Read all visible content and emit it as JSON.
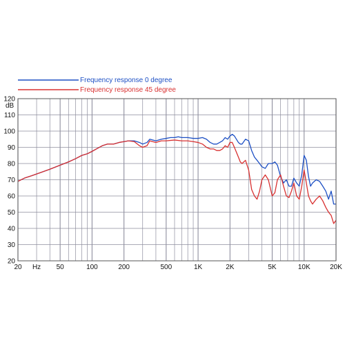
{
  "colors": {
    "series0": "#1c4fc4",
    "series45": "#d83030",
    "grid": "#8e8e9e",
    "frame": "#555555",
    "text": "#111111"
  },
  "chart_data": {
    "type": "line",
    "x_scale": "log",
    "xlim": [
      20,
      20000
    ],
    "ylim": [
      20,
      120
    ],
    "ylabel": "dB",
    "x_tick_labels": [
      {
        "value": 20,
        "label": "20"
      },
      {
        "value": 30,
        "label": "Hz"
      },
      {
        "value": 50,
        "label": "50"
      },
      {
        "value": 100,
        "label": "100"
      },
      {
        "value": 200,
        "label": "200"
      },
      {
        "value": 500,
        "label": "500"
      },
      {
        "value": 1000,
        "label": "1K"
      },
      {
        "value": 2000,
        "label": "2K"
      },
      {
        "value": 5000,
        "label": "5K"
      },
      {
        "value": 10000,
        "label": "10K"
      },
      {
        "value": 20000,
        "label": "20K"
      }
    ],
    "y_tick_labels": [
      "20",
      "30",
      "40",
      "50",
      "60",
      "70",
      "80",
      "90",
      "100",
      "110",
      "120"
    ],
    "grid": true,
    "legend_position": "top-left",
    "series": [
      {
        "name": "Frequency response 0 degree",
        "color": "#1c4fc4",
        "points": [
          [
            20,
            69
          ],
          [
            23,
            71
          ],
          [
            27,
            72.5
          ],
          [
            33,
            74.5
          ],
          [
            40,
            76.5
          ],
          [
            50,
            79
          ],
          [
            60,
            81
          ],
          [
            70,
            83
          ],
          [
            80,
            85
          ],
          [
            90,
            86
          ],
          [
            100,
            87.5
          ],
          [
            110,
            89
          ],
          [
            125,
            91
          ],
          [
            140,
            92
          ],
          [
            160,
            92
          ],
          [
            180,
            93
          ],
          [
            200,
            93.5
          ],
          [
            220,
            94
          ],
          [
            250,
            94
          ],
          [
            280,
            93
          ],
          [
            300,
            92
          ],
          [
            330,
            93
          ],
          [
            350,
            95
          ],
          [
            400,
            94
          ],
          [
            450,
            95
          ],
          [
            500,
            95.5
          ],
          [
            550,
            96
          ],
          [
            600,
            96
          ],
          [
            650,
            96.5
          ],
          [
            700,
            96
          ],
          [
            800,
            96
          ],
          [
            900,
            95.5
          ],
          [
            1000,
            95.5
          ],
          [
            1100,
            96
          ],
          [
            1200,
            95
          ],
          [
            1300,
            93
          ],
          [
            1400,
            92
          ],
          [
            1500,
            92
          ],
          [
            1600,
            93
          ],
          [
            1700,
            94
          ],
          [
            1800,
            96
          ],
          [
            1900,
            95
          ],
          [
            2000,
            97
          ],
          [
            2100,
            98
          ],
          [
            2200,
            97
          ],
          [
            2400,
            93
          ],
          [
            2500,
            92
          ],
          [
            2600,
            92
          ],
          [
            2800,
            95
          ],
          [
            3000,
            94
          ],
          [
            3200,
            88
          ],
          [
            3400,
            84
          ],
          [
            3600,
            82
          ],
          [
            3800,
            80
          ],
          [
            4000,
            78
          ],
          [
            4300,
            77
          ],
          [
            4600,
            80
          ],
          [
            5000,
            80
          ],
          [
            5300,
            81
          ],
          [
            5600,
            79
          ],
          [
            6000,
            72
          ],
          [
            6400,
            68
          ],
          [
            6800,
            70
          ],
          [
            7200,
            66
          ],
          [
            7600,
            66
          ],
          [
            8000,
            71
          ],
          [
            8500,
            68
          ],
          [
            9000,
            66
          ],
          [
            9500,
            73
          ],
          [
            10000,
            85
          ],
          [
            10500,
            82
          ],
          [
            11000,
            72
          ],
          [
            11500,
            66
          ],
          [
            12000,
            68
          ],
          [
            13000,
            70
          ],
          [
            14000,
            69
          ],
          [
            15000,
            66
          ],
          [
            16000,
            63
          ],
          [
            17000,
            58
          ],
          [
            18000,
            63
          ],
          [
            19000,
            55
          ],
          [
            20000,
            55
          ]
        ]
      },
      {
        "name": "Frequency response 45 degree",
        "color": "#d83030",
        "points": [
          [
            20,
            69
          ],
          [
            23,
            71
          ],
          [
            27,
            72.5
          ],
          [
            33,
            74.5
          ],
          [
            40,
            76.5
          ],
          [
            50,
            79
          ],
          [
            60,
            81
          ],
          [
            70,
            83
          ],
          [
            80,
            85
          ],
          [
            90,
            86
          ],
          [
            100,
            87.5
          ],
          [
            110,
            89
          ],
          [
            125,
            91
          ],
          [
            140,
            92
          ],
          [
            160,
            92
          ],
          [
            180,
            93
          ],
          [
            200,
            93.5
          ],
          [
            220,
            94
          ],
          [
            250,
            93.5
          ],
          [
            280,
            91
          ],
          [
            300,
            90
          ],
          [
            330,
            91
          ],
          [
            350,
            94
          ],
          [
            400,
            93
          ],
          [
            450,
            94
          ],
          [
            500,
            94
          ],
          [
            600,
            94.5
          ],
          [
            700,
            94
          ],
          [
            800,
            94
          ],
          [
            900,
            93.5
          ],
          [
            1000,
            93
          ],
          [
            1100,
            92
          ],
          [
            1200,
            90
          ],
          [
            1300,
            89
          ],
          [
            1400,
            89
          ],
          [
            1500,
            88
          ],
          [
            1600,
            88
          ],
          [
            1700,
            89
          ],
          [
            1800,
            91
          ],
          [
            1900,
            90
          ],
          [
            2000,
            93
          ],
          [
            2100,
            93
          ],
          [
            2200,
            90
          ],
          [
            2400,
            84
          ],
          [
            2500,
            81
          ],
          [
            2600,
            80
          ],
          [
            2800,
            82
          ],
          [
            3000,
            76
          ],
          [
            3200,
            64
          ],
          [
            3400,
            60
          ],
          [
            3600,
            58
          ],
          [
            3800,
            63
          ],
          [
            4000,
            70
          ],
          [
            4300,
            73
          ],
          [
            4600,
            70
          ],
          [
            5000,
            60
          ],
          [
            5300,
            62
          ],
          [
            5600,
            70
          ],
          [
            6000,
            73
          ],
          [
            6400,
            66
          ],
          [
            6800,
            60
          ],
          [
            7200,
            59
          ],
          [
            7600,
            63
          ],
          [
            8000,
            68
          ],
          [
            8500,
            60
          ],
          [
            9000,
            58
          ],
          [
            9500,
            66
          ],
          [
            10000,
            76
          ],
          [
            10500,
            68
          ],
          [
            11000,
            60
          ],
          [
            11500,
            57
          ],
          [
            12000,
            55
          ],
          [
            13000,
            58
          ],
          [
            14000,
            60
          ],
          [
            15000,
            57
          ],
          [
            16000,
            53
          ],
          [
            17000,
            50
          ],
          [
            18000,
            48
          ],
          [
            19000,
            43
          ],
          [
            20000,
            45
          ]
        ]
      }
    ]
  }
}
